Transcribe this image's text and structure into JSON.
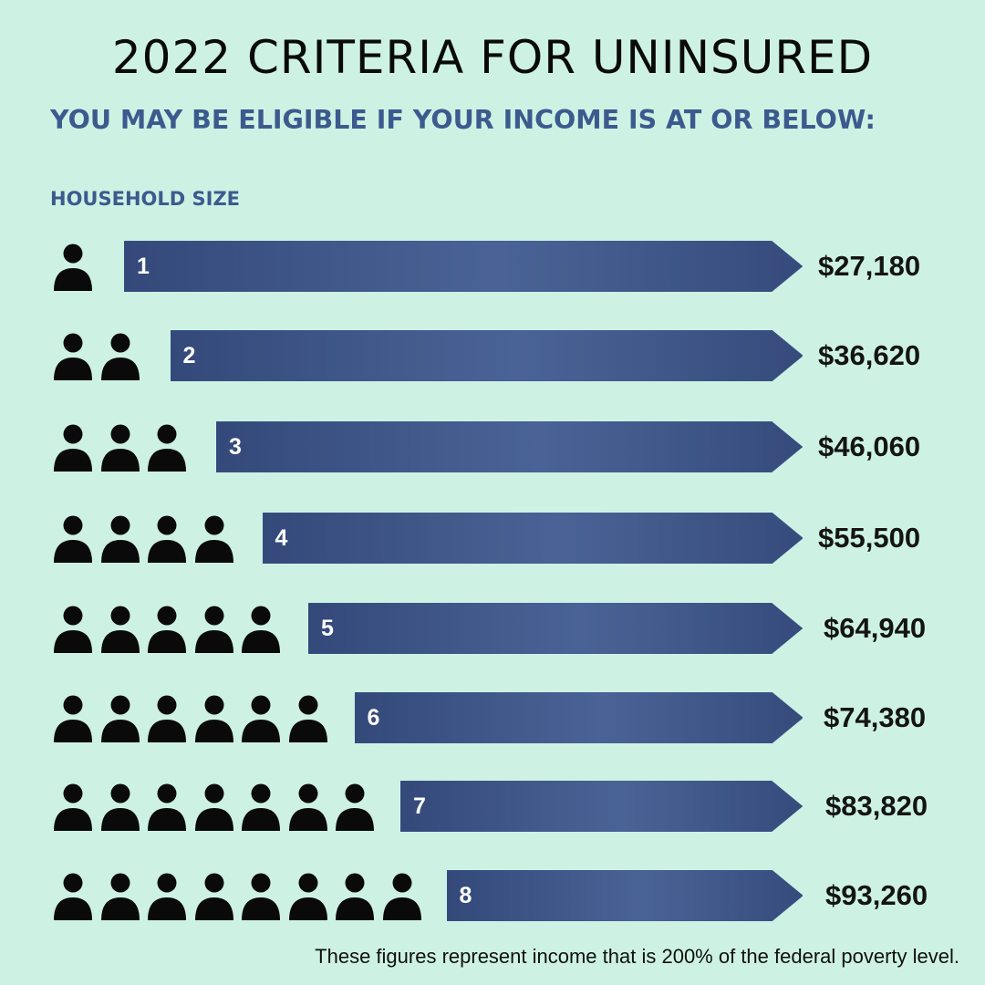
{
  "title": "2022 CRITERIA FOR UNINSURED",
  "subtitle": "YOU MAY BE ELIGIBLE IF YOUR INCOME IS AT OR BELOW:",
  "household_label": "HOUSEHOLD SIZE",
  "colors": {
    "background": "#cdf2e4",
    "bar": "#3d5a8e",
    "heading": "#3d5a8e",
    "icon": "#0a0a0a"
  },
  "icons": {
    "person": "person-icon"
  },
  "rows": [
    {
      "size": 1,
      "label": "1",
      "amount": "$27,180"
    },
    {
      "size": 2,
      "label": "2",
      "amount": "$36,620"
    },
    {
      "size": 3,
      "label": "3",
      "amount": "$46,060"
    },
    {
      "size": 4,
      "label": "4",
      "amount": "$55,500"
    },
    {
      "size": 5,
      "label": "5",
      "amount": "$64,940"
    },
    {
      "size": 6,
      "label": "6",
      "amount": "$74,380"
    },
    {
      "size": 7,
      "label": "7",
      "amount": "$83,820"
    },
    {
      "size": 8,
      "label": "8",
      "amount": "$93,260"
    }
  ],
  "footnote": "These figures represent income that is 200% of the federal poverty level."
}
